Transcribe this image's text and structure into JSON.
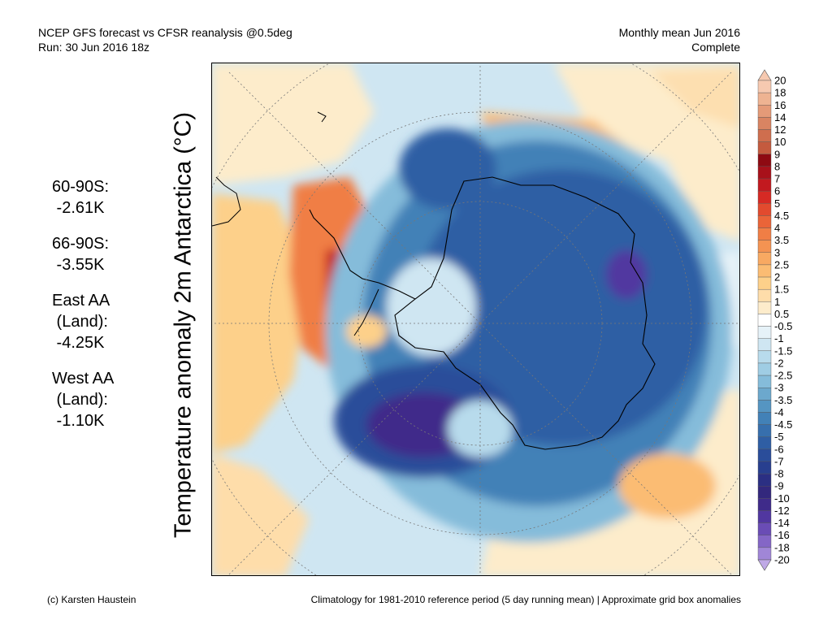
{
  "header": {
    "line1": "NCEP GFS forecast vs CFSR reanalysis @0.5deg",
    "line2": "Run: 30 Jun 2016 18z",
    "right1": "Monthly mean Jun 2016",
    "right2": "Complete"
  },
  "y_axis_label": "Temperature anomaly 2m Antarctica (°C)",
  "stats": [
    {
      "label": "60-90S:",
      "value": " -2.61K"
    },
    {
      "label": "66-90S:",
      "value": " -3.55K"
    },
    {
      "label": "East AA",
      "label2": " (Land):",
      "value": " -4.25K"
    },
    {
      "label": "West AA",
      "label2": " (Land):",
      "value": " -1.10K"
    }
  ],
  "colorbar": {
    "ticks": [
      "20",
      "18",
      "16",
      "14",
      "12",
      "10",
      "9",
      "8",
      "7",
      "6",
      "5",
      "4.5",
      "4",
      "3.5",
      "3",
      "2.5",
      "2",
      "1.5",
      "1",
      "0.5",
      "-0.5",
      "-1",
      "-1.5",
      "-2",
      "-2.5",
      "-3",
      "-3.5",
      "-4",
      "-4.5",
      "-5",
      "-6",
      "-7",
      "-8",
      "-9",
      "-10",
      "-12",
      "-14",
      "-16",
      "-18",
      "-20"
    ],
    "colors": [
      "#f6c9b0",
      "#eeb392",
      "#e49a78",
      "#d98462",
      "#cf6e4e",
      "#c45a3e",
      "#8e0a12",
      "#a8111a",
      "#c2191f",
      "#d62a24",
      "#e24a2e",
      "#ea6438",
      "#f07e45",
      "#f49352",
      "#f8a962",
      "#fbbc73",
      "#fdd08a",
      "#feddaa",
      "#fdeccb",
      "#ffffff",
      "#e6f2f8",
      "#cfe6f2",
      "#b8dbec",
      "#9fcde4",
      "#85bcda",
      "#6ca8cd",
      "#5595c2",
      "#4281b7",
      "#376fad",
      "#2f5ea4",
      "#2a4d9a",
      "#283f8f",
      "#2b2f83",
      "#33287d",
      "#3f2b8a",
      "#5137a0",
      "#6a4cb5",
      "#8466c6",
      "#a086d7",
      "#bfa9e6"
    ]
  },
  "footer": {
    "left": "(c) Karsten Haustein",
    "right": "Climatology for 1981-2010 reference period (5 day running mean) | Approximate grid box anomalies"
  }
}
